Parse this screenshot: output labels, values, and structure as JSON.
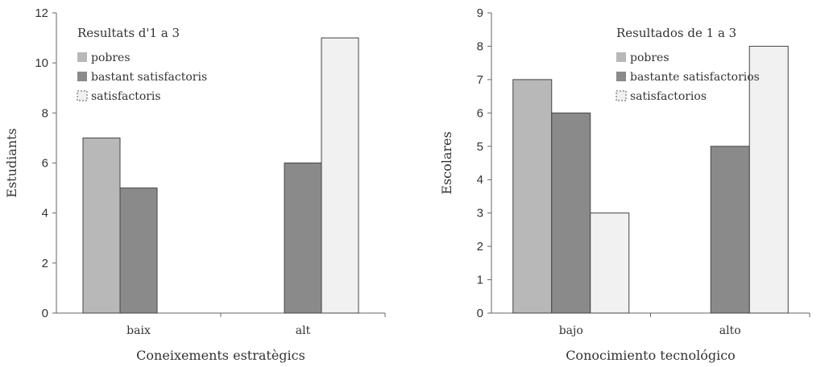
{
  "chart_data": [
    {
      "type": "bar",
      "title": "Resultats d'1 a 3",
      "xlabel": "Coneixements estratègics",
      "ylabel": "Estudiants",
      "categories": [
        "baix",
        "alt"
      ],
      "ylim": [
        0,
        12
      ],
      "yticks": [
        0,
        2,
        4,
        6,
        8,
        10,
        12
      ],
      "grid": false,
      "legend_position": "top-left",
      "series": [
        {
          "name": "pobres",
          "values": [
            7,
            0
          ],
          "color": "#b8b8b8"
        },
        {
          "name": "bastant satisfactoris",
          "values": [
            5,
            6
          ],
          "color": "#8a8a8a"
        },
        {
          "name": "satisfactoris",
          "values": [
            0,
            11
          ],
          "color": "#f1f1f1"
        }
      ]
    },
    {
      "type": "bar",
      "title": "Resultados de 1 a 3",
      "xlabel": "Conocimiento tecnológico",
      "ylabel": "Escolares",
      "categories": [
        "bajo",
        "alto"
      ],
      "ylim": [
        0,
        9
      ],
      "yticks": [
        0,
        1,
        2,
        3,
        4,
        5,
        6,
        7,
        8,
        9
      ],
      "grid": false,
      "legend_position": "top-right",
      "series": [
        {
          "name": "pobres",
          "values": [
            7,
            0
          ],
          "color": "#b8b8b8"
        },
        {
          "name": "bastante satisfactorios",
          "values": [
            6,
            5
          ],
          "color": "#8a8a8a"
        },
        {
          "name": "satisfactorios",
          "values": [
            3,
            8
          ],
          "color": "#f1f1f1"
        }
      ]
    }
  ]
}
